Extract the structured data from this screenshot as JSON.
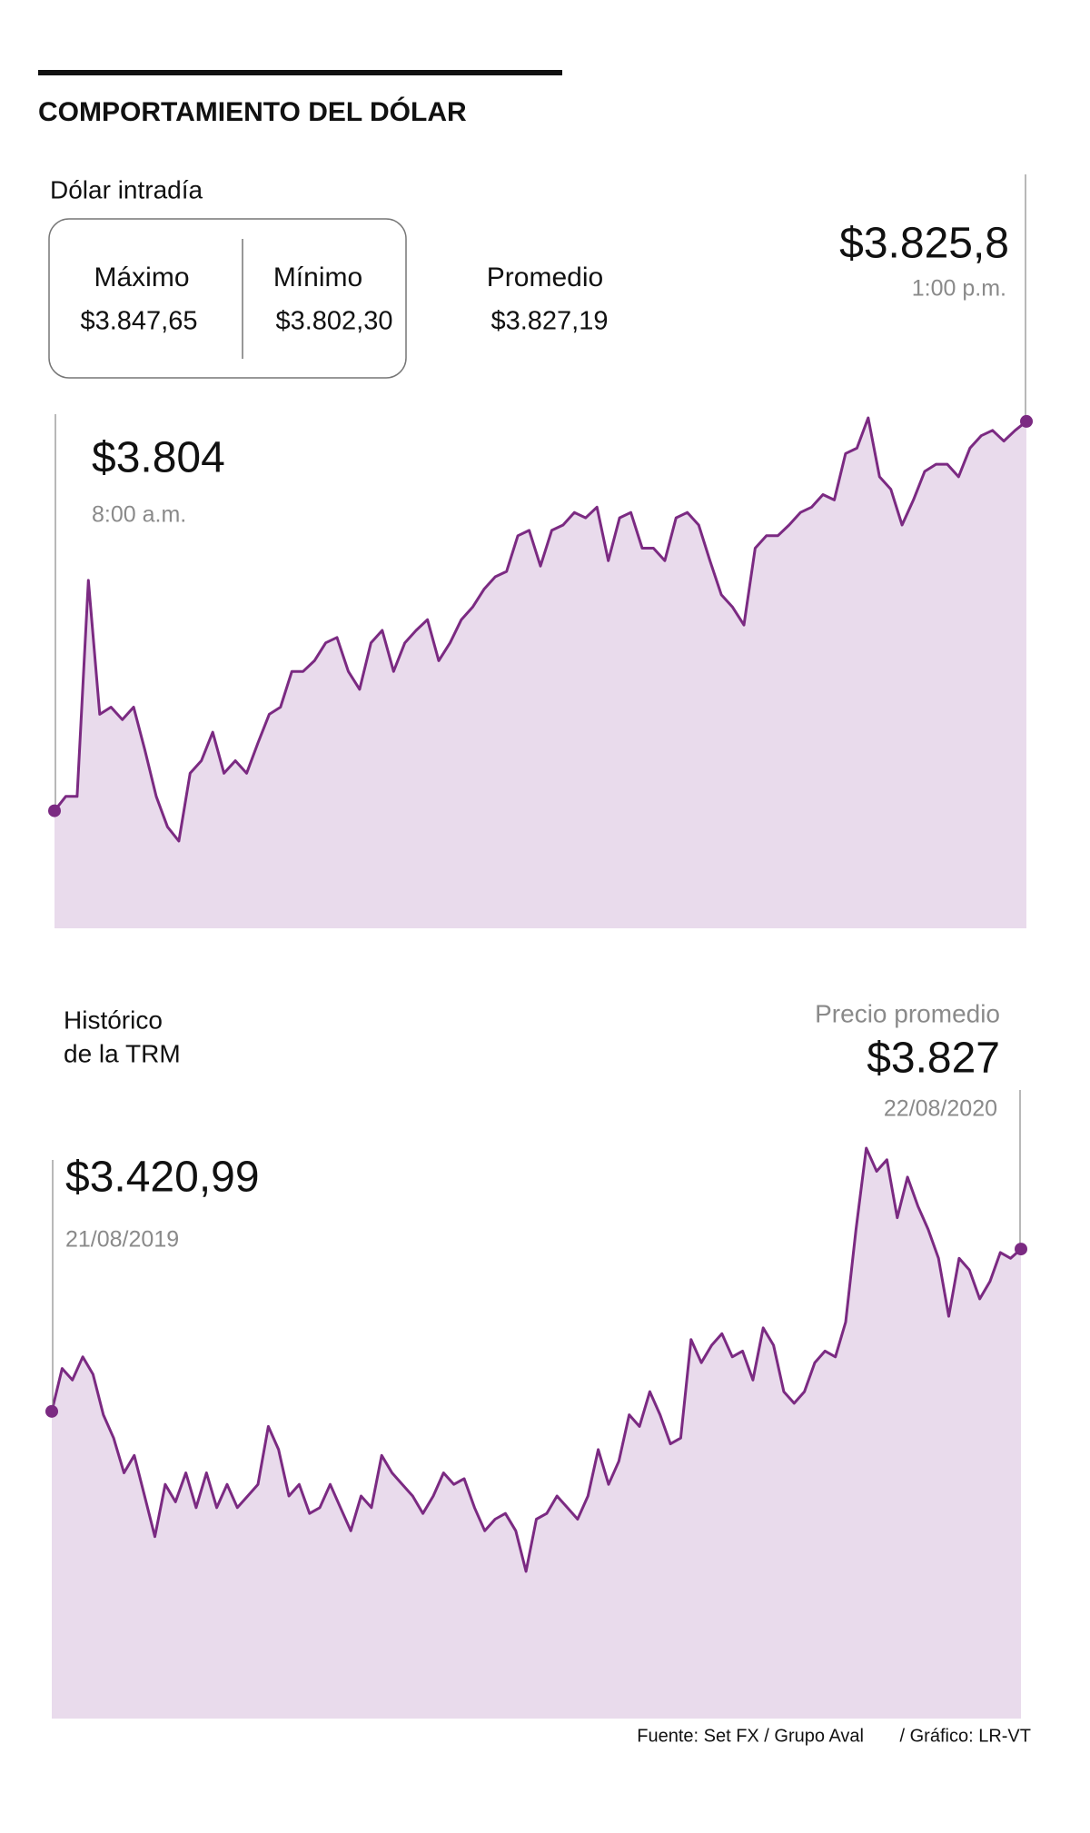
{
  "header": {
    "title": "COMPORTAMIENTO DEL DÓLAR"
  },
  "footer": {
    "source": "Fuente: Set FX / Grupo Aval",
    "credit": "/ Gráfico: LR-VT"
  },
  "chart_data": [
    {
      "type": "area",
      "title": "Dólar intradía",
      "color": "#7b2a82",
      "fill": "#e9dbec",
      "stats": [
        {
          "label": "Máximo",
          "value": 3847.65,
          "value_label": "$3.847,65"
        },
        {
          "label": "Mínimo",
          "value": 3802.3,
          "value_label": "$3.802,30"
        },
        {
          "label": "Promedio",
          "value": 3827.19,
          "value_label": "$3.827,19"
        }
      ],
      "start": {
        "label": "$3.804",
        "note": "8:00 a.m."
      },
      "end": {
        "label": "$3.825,8",
        "note": "1:00 p.m."
      },
      "values": [
        3804.0,
        3804.8,
        3804.8,
        3816.9,
        3809.4,
        3809.8,
        3809.1,
        3809.8,
        3807.4,
        3804.8,
        3803.1,
        3802.3,
        3806.1,
        3806.8,
        3808.4,
        3806.1,
        3806.8,
        3806.1,
        3807.8,
        3809.4,
        3809.8,
        3811.8,
        3811.8,
        3812.4,
        3813.4,
        3813.7,
        3811.8,
        3810.8,
        3813.4,
        3814.1,
        3811.8,
        3813.4,
        3814.1,
        3814.7,
        3812.4,
        3813.4,
        3814.7,
        3815.4,
        3816.4,
        3817.1,
        3817.4,
        3819.4,
        3819.7,
        3817.7,
        3819.7,
        3820.0,
        3820.7,
        3820.4,
        3821.0,
        3818.0,
        3820.4,
        3820.7,
        3818.7,
        3818.7,
        3818.0,
        3820.4,
        3820.7,
        3820.0,
        3818.0,
        3816.1,
        3815.4,
        3814.4,
        3818.7,
        3819.4,
        3819.4,
        3820.0,
        3820.7,
        3821.0,
        3821.7,
        3821.4,
        3824.0,
        3824.3,
        3826.0,
        3822.7,
        3822.0,
        3820.0,
        3821.4,
        3823.0,
        3823.4,
        3823.4,
        3822.7,
        3824.3,
        3825.0,
        3825.3,
        3824.7,
        3825.3,
        3825.8
      ]
    },
    {
      "type": "area",
      "title": "Histórico",
      "subtitle": "de la TRM",
      "color": "#7b2a82",
      "fill": "#e9dbec",
      "start": {
        "label": "$3.420,99",
        "note": "21/08/2019"
      },
      "end": {
        "caption": "Precio promedio",
        "label": "$3.827",
        "note": "22/08/2020"
      },
      "values": [
        3420.99,
        3528.3,
        3499.3,
        3557.3,
        3513.8,
        3412.3,
        3354.3,
        3267.3,
        3310.8,
        3209.3,
        3107.8,
        3238.3,
        3194.8,
        3267.3,
        3180.3,
        3267.3,
        3180.3,
        3238.3,
        3180.3,
        3209.3,
        3238.3,
        3383.3,
        3325.3,
        3209.3,
        3238.3,
        3165.8,
        3180.3,
        3238.3,
        3180.3,
        3122.3,
        3209.3,
        3180.3,
        3310.8,
        3267.3,
        3238.3,
        3209.3,
        3165.8,
        3209.3,
        3267.3,
        3238.3,
        3252.8,
        3180.3,
        3122.3,
        3151.3,
        3165.8,
        3122.3,
        3020.8,
        3151.3,
        3165.8,
        3209.3,
        3180.3,
        3151.3,
        3209.3,
        3325.3,
        3238.3,
        3296.3,
        3412.3,
        3383.3,
        3470.3,
        3412.3,
        3339.8,
        3354.3,
        3600.8,
        3542.8,
        3586.3,
        3615.3,
        3557.3,
        3571.8,
        3499.3,
        3629.8,
        3586.3,
        3470.3,
        3441.3,
        3470.3,
        3542.8,
        3571.8,
        3557.3,
        3644.3,
        3876.3,
        4079.3,
        4021.3,
        4050.3,
        3905.3,
        4006.8,
        3934.3,
        3876.3,
        3803.8,
        3658.8,
        3803.8,
        3774.8,
        3702.3,
        3745.8,
        3818.3,
        3803.8,
        3827.0
      ]
    }
  ]
}
